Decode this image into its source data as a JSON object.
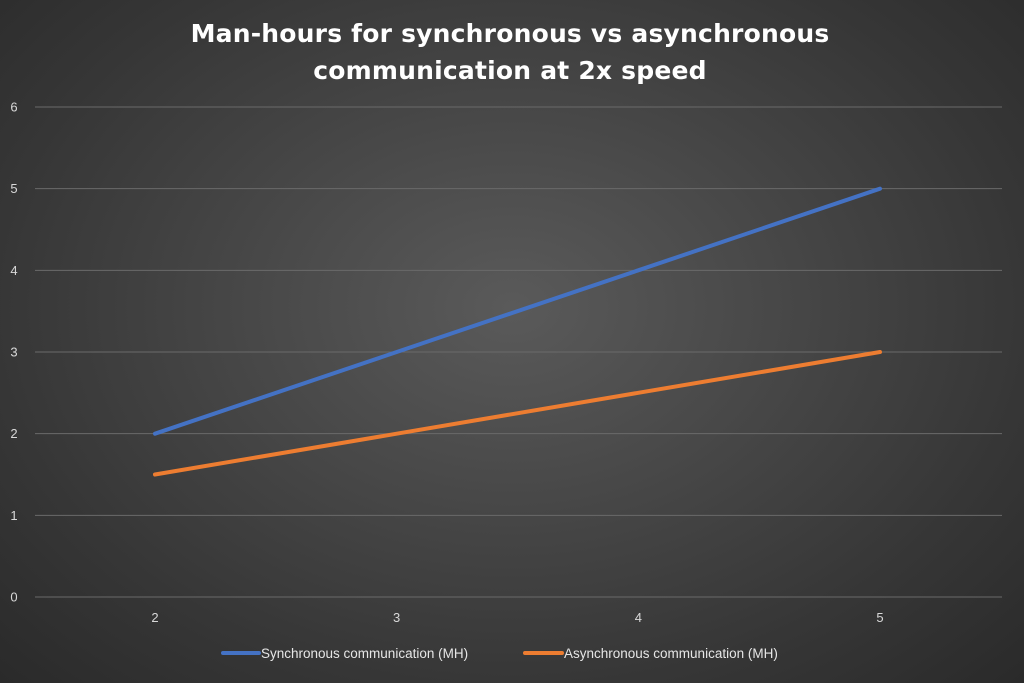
{
  "chart_data": {
    "type": "line",
    "title_lines": [
      "Man-hours for synchronous vs asynchronous",
      "communication at 2x speed"
    ],
    "categories": [
      "2",
      "3",
      "4",
      "5"
    ],
    "x": [
      2,
      3,
      4,
      5
    ],
    "ylim": [
      0,
      6
    ],
    "yticks": [
      "0",
      "1",
      "2",
      "3",
      "4",
      "5",
      "6"
    ],
    "grid": true,
    "legend_position": "bottom",
    "xlabel": "",
    "ylabel": "",
    "series": [
      {
        "name": "Synchronous communication (MH)",
        "values": [
          2,
          3,
          4,
          5
        ],
        "color": "#4472c4"
      },
      {
        "name": "Asynchronous communication (MH)",
        "values": [
          1.5,
          2,
          2.5,
          3
        ],
        "color": "#ed7d31"
      }
    ]
  }
}
